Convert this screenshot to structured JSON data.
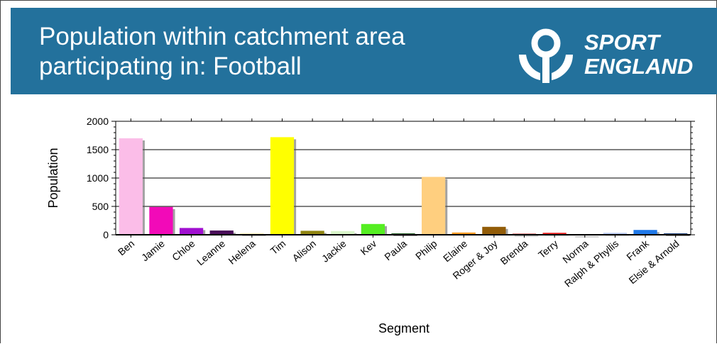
{
  "header": {
    "title_line1": "Population within catchment area",
    "title_line2": "participating in: Football",
    "logo_line1": "SPORT",
    "logo_line2": "ENGLAND",
    "background_color": "#23719c"
  },
  "chart_data": {
    "type": "bar",
    "title": "",
    "xlabel": "Segment",
    "ylabel": "Population",
    "ylim": [
      0,
      2000
    ],
    "yticks": [
      0,
      500,
      1000,
      1500,
      2000
    ],
    "grid": true,
    "categories": [
      "Ben",
      "Jamie",
      "Chloe",
      "Leanne",
      "Helena",
      "Tim",
      "Alison",
      "Jackie",
      "Kev",
      "Paula",
      "Philip",
      "Elaine",
      "Roger & Joy",
      "Brenda",
      "Terry",
      "Norma",
      "Ralph & Phyllis",
      "Frank",
      "Elsie & Arnold"
    ],
    "values": [
      1700,
      490,
      120,
      75,
      30,
      1720,
      70,
      65,
      190,
      25,
      1020,
      40,
      140,
      20,
      35,
      8,
      35,
      85,
      25
    ],
    "colors": [
      "#fbbde8",
      "#f20ab8",
      "#a010d0",
      "#4a0c5a",
      "#f5f0c0",
      "#ffff00",
      "#8f8410",
      "#d8f5c8",
      "#55ee22",
      "#1d5a1d",
      "#ffcf7f",
      "#f59a22",
      "#925c08",
      "#c43030",
      "#e82020",
      "#f4f4f4",
      "#b8c8ee",
      "#1f78e8",
      "#163a78"
    ]
  }
}
